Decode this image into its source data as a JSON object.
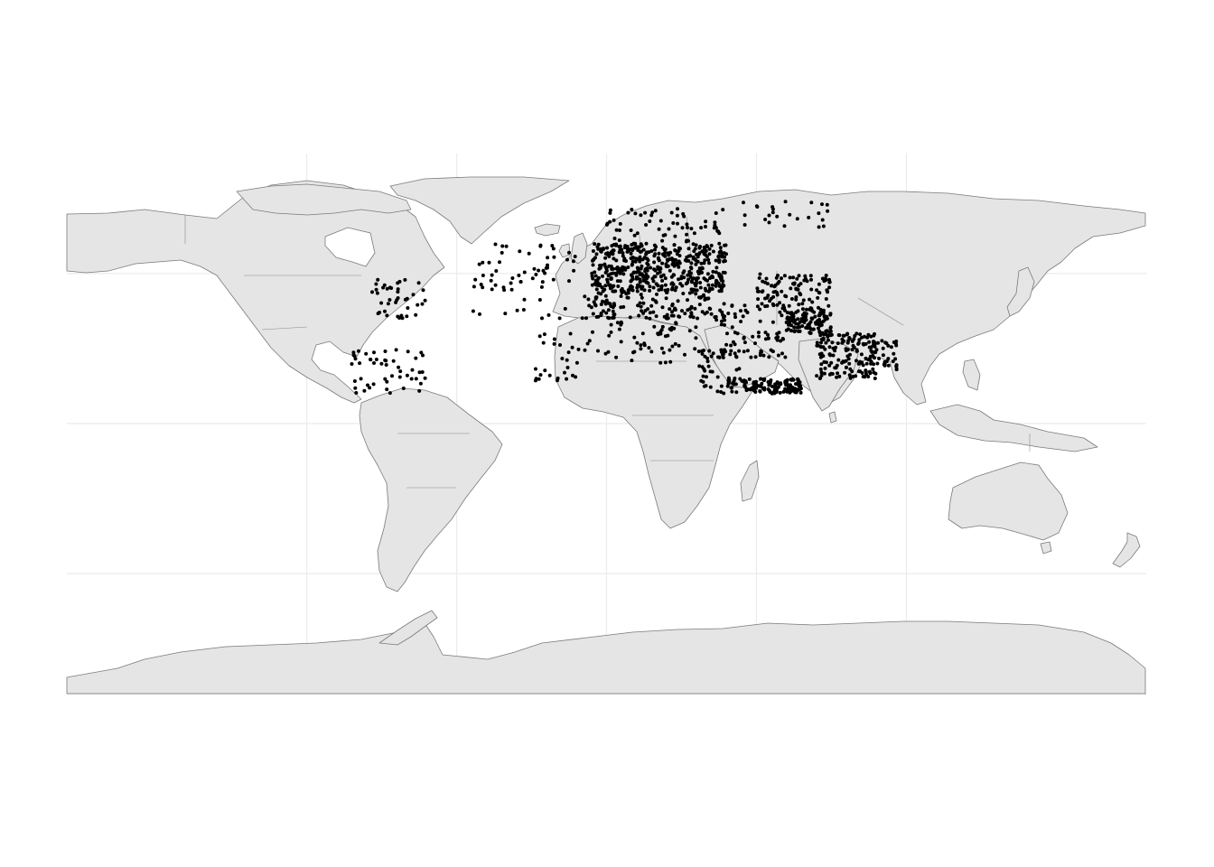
{
  "map": {
    "projection": "equirectangular",
    "grid": true,
    "grid_lon": [
      -100,
      -50,
      0,
      50,
      100
    ],
    "grid_lat": [
      -50,
      0,
      50
    ],
    "lon_range": [
      -150,
      150
    ],
    "lat_range": [
      -90,
      90
    ],
    "background": "#ffffff",
    "land_color": "#e5e5e5",
    "border_color": "#7a7a7a",
    "point_color": "#000000"
  },
  "chart_data": {
    "type": "scatter",
    "x_field": "longitude",
    "y_field": "latitude",
    "clusters": [
      {
        "name": "western-europe",
        "lon": [
          -5,
          18
        ],
        "lat": [
          44,
          60
        ],
        "count": 260
      },
      {
        "name": "eastern-europe",
        "lon": [
          18,
          40
        ],
        "lat": [
          44,
          60
        ],
        "count": 220
      },
      {
        "name": "scandinavia-north",
        "lon": [
          0,
          40
        ],
        "lat": [
          60,
          72
        ],
        "count": 60
      },
      {
        "name": "north-russia",
        "lon": [
          40,
          75
        ],
        "lat": [
          65,
          75
        ],
        "count": 25
      },
      {
        "name": "mediterranean",
        "lon": [
          -5,
          35
        ],
        "lat": [
          35,
          44
        ],
        "count": 120
      },
      {
        "name": "north-africa",
        "lon": [
          -10,
          30
        ],
        "lat": [
          20,
          35
        ],
        "count": 60
      },
      {
        "name": "middle-east",
        "lon": [
          35,
          60
        ],
        "lat": [
          22,
          40
        ],
        "count": 90
      },
      {
        "name": "central-asia",
        "lon": [
          50,
          75
        ],
        "lat": [
          38,
          50
        ],
        "count": 100
      },
      {
        "name": "afghanistan-pakistan",
        "lon": [
          60,
          75
        ],
        "lat": [
          30,
          38
        ],
        "count": 120
      },
      {
        "name": "india",
        "lon": [
          70,
          90
        ],
        "lat": [
          15,
          30
        ],
        "count": 150
      },
      {
        "name": "arabian-sea-gulf-of-aden",
        "lon": [
          40,
          65
        ],
        "lat": [
          10,
          15
        ],
        "count": 130
      },
      {
        "name": "bangladesh-myanmar",
        "lon": [
          88,
          97
        ],
        "lat": [
          18,
          28
        ],
        "count": 40
      },
      {
        "name": "north-atlantic",
        "lon": [
          -45,
          -5
        ],
        "lat": [
          35,
          60
        ],
        "count": 70
      },
      {
        "name": "us-east-coast",
        "lon": [
          -80,
          -60
        ],
        "lat": [
          35,
          48
        ],
        "count": 40
      },
      {
        "name": "caribbean",
        "lon": [
          -85,
          -60
        ],
        "lat": [
          10,
          25
        ],
        "count": 50
      },
      {
        "name": "west-africa-coast",
        "lon": [
          -25,
          -10
        ],
        "lat": [
          12,
          30
        ],
        "count": 25
      },
      {
        "name": "east-africa",
        "lon": [
          30,
          45
        ],
        "lat": [
          10,
          25
        ],
        "count": 40
      }
    ]
  }
}
